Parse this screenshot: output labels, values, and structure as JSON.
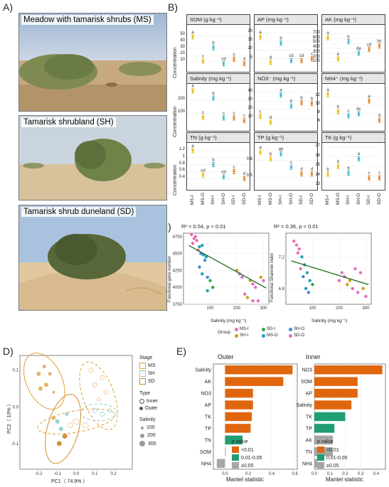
{
  "panels": {
    "a": "A)",
    "b": "B)",
    "c": "C)",
    "d": "D)",
    "e": "E)"
  },
  "photos": [
    {
      "caption": "Meadow with tamarisk shrubs (MS)"
    },
    {
      "caption": "Tamarisk shrubland (SH)"
    },
    {
      "caption": "Tamarisk shrub duneland (SD)"
    }
  ],
  "panel_b": {
    "ylabel": "Concentration",
    "groups": [
      "MS-I",
      "MS-O",
      "SH-I",
      "SH-O",
      "SD-I",
      "SD-O"
    ],
    "colors": [
      "#e7b800",
      "#e7b800",
      "#2ab7ca",
      "#2ab7ca",
      "#e07b1a",
      "#e07b1a"
    ]
  },
  "panel_c": {
    "left": {
      "r2": "R² = 0.54, p < 0.01",
      "ylabel": "Functional gene number",
      "xlabel": "Salinity (mg kg⁻¹)"
    },
    "right": {
      "r2": "R² = 0.36, p < 0.01",
      "ylabel": "Functional Shannon index",
      "xlabel": "Salinity (mg kg⁻¹)"
    },
    "legend_title": "Group",
    "legend": [
      {
        "label": "MS-I",
        "color": "#f06bb0"
      },
      {
        "label": "SH-I",
        "color": "#c9a11a"
      },
      {
        "label": "SD-I",
        "color": "#2aa84a"
      },
      {
        "label": "MS-O",
        "color": "#1aa3b8"
      },
      {
        "label": "SH-O",
        "color": "#3b8cd6"
      },
      {
        "label": "SD-O",
        "color": "#e36cc4"
      }
    ]
  },
  "panel_d": {
    "xlabel": "PC1（ 74.9% ）",
    "ylabel": "PC2（ 10% ）",
    "legend": {
      "stage_title": "Stage",
      "stages": [
        "MS",
        "SH",
        "SD"
      ],
      "type_title": "Type",
      "types": [
        "Inner",
        "Outer"
      ],
      "salinity_title": "Salinity",
      "salinity": [
        "100",
        "200",
        "300"
      ]
    }
  },
  "panel_e": {
    "outer": {
      "title": "Outer",
      "xlabel": "Mantel statistic"
    },
    "inner": {
      "title": "Inner",
      "xlabel": "Mantel statistic"
    },
    "legend_title": "p value",
    "legend": [
      {
        "label": "<0.01",
        "color": "#e0660e"
      },
      {
        "label": "0.01-0.05",
        "color": "#1f9e74"
      },
      {
        "label": "≥0.05",
        "color": "#a6a6a6"
      }
    ]
  },
  "chart_data": [
    {
      "type": "scatter",
      "panel": "B",
      "facets": [
        {
          "title": "SOM (g kg⁻¹)",
          "ylim": [
            0,
            60
          ],
          "ticks": [
            10,
            20,
            30,
            40,
            50
          ],
          "values": [
            48,
            10,
            31,
            6,
            13,
            6
          ],
          "letters": [
            "a",
            "c",
            "b",
            "cd",
            "c",
            "d"
          ]
        },
        {
          "title": "AP (mg kg⁻¹)",
          "ylim": [
            0,
            22
          ],
          "ticks": [
            5,
            10,
            15,
            20
          ],
          "values": [
            17.5,
            3,
            14,
            4,
            4,
            5
          ],
          "letters": [
            "a",
            "d",
            "b",
            "cd",
            "cd",
            "c"
          ]
        },
        {
          "title": "AK (mg kg⁻¹)",
          "ylim": [
            0,
            800
          ],
          "ticks": [
            100,
            200,
            300,
            400,
            500,
            600,
            700
          ],
          "values": [
            620,
            180,
            540,
            300,
            380,
            450
          ],
          "letters": [
            "a",
            "e",
            "b",
            "de",
            "cd",
            "bc"
          ]
        },
        {
          "title": "Salinity (mg kg⁻¹)",
          "ylim": [
            0,
            290
          ],
          "ticks": [
            100,
            200
          ],
          "values": [
            270,
            70,
            215,
            65,
            65,
            45
          ],
          "letters": [
            "a",
            "c",
            "b",
            "c",
            "c",
            "c"
          ]
        },
        {
          "title": "NO3⁻ (mg kg⁻¹)",
          "ylim": [
            0,
            45
          ],
          "ticks": [
            10,
            20,
            30,
            40
          ],
          "values": [
            12,
            5,
            37,
            24,
            28,
            27
          ],
          "letters": [
            "c",
            "d",
            "a",
            "b",
            "b",
            "b"
          ]
        },
        {
          "title": "NH4⁺ (mg kg⁻¹)",
          "ylim": [
            5,
            14
          ],
          "ticks": [
            6,
            8,
            10,
            12
          ],
          "values": [
            12.5,
            8.5,
            7.5,
            8,
            11,
            6.5
          ],
          "letters": [
            "a",
            "b",
            "c",
            "bc",
            "a",
            "d"
          ]
        },
        {
          "title": "TN (g kg⁻¹)",
          "ylim": [
            0.2,
            1.3
          ],
          "ticks": [
            0.4,
            0.6,
            0.8,
            1.0,
            1.2
          ],
          "values": [
            1.2,
            0.5,
            0.8,
            0.45,
            0.6,
            0.4
          ],
          "letters": [
            "a",
            "cd",
            "b",
            "cd",
            "c",
            "d"
          ]
        },
        {
          "title": "TP (g kg⁻¹)",
          "ylim": [
            0.45,
            0.68
          ],
          "ticks": [
            0.5,
            0.6
          ],
          "values": [
            0.65,
            0.61,
            0.64,
            0.56,
            0.52,
            0.52
          ],
          "letters": [
            "a",
            "b",
            "ab",
            "c",
            "d",
            "d"
          ]
        },
        {
          "title": "TK (g kg⁻¹)",
          "ylim": [
            13,
            17
          ],
          "ticks": [
            13,
            14,
            15,
            16,
            17
          ],
          "values": [
            14.2,
            15,
            14.3,
            15.8,
            13.8,
            13.8
          ],
          "letters": [
            "b",
            "b",
            "b",
            "a",
            "c",
            "c"
          ]
        }
      ]
    },
    {
      "type": "scatter",
      "panel": "C-left",
      "xlim": [
        0,
        320
      ],
      "xticks": [
        100,
        200,
        300
      ],
      "ylim": [
        3750,
        4800
      ],
      "yticks": [
        3750,
        4000,
        4250,
        4500,
        4750
      ],
      "points": [
        [
          30,
          4780
        ],
        [
          40,
          4720
        ],
        [
          35,
          4650
        ],
        [
          45,
          4750
        ],
        [
          50,
          4690
        ],
        [
          60,
          4600
        ],
        [
          55,
          4550
        ],
        [
          70,
          4620
        ],
        [
          65,
          4500
        ],
        [
          75,
          4480
        ],
        [
          80,
          4400
        ],
        [
          85,
          4450
        ],
        [
          60,
          4300
        ],
        [
          70,
          4200
        ],
        [
          90,
          4150
        ],
        [
          100,
          4100
        ],
        [
          110,
          4000
        ],
        [
          90,
          3950
        ],
        [
          200,
          4250
        ],
        [
          210,
          4200
        ],
        [
          220,
          4150
        ],
        [
          250,
          4100
        ],
        [
          260,
          4050
        ],
        [
          270,
          4000
        ],
        [
          290,
          4150
        ],
        [
          300,
          4100
        ],
        [
          230,
          3900
        ],
        [
          240,
          3850
        ],
        [
          260,
          3800
        ],
        [
          280,
          3800
        ]
      ],
      "fit": [
        [
          20,
          4620
        ],
        [
          310,
          3990
        ]
      ]
    },
    {
      "type": "scatter",
      "panel": "C-right",
      "xlim": [
        0,
        320
      ],
      "xticks": [
        100,
        200,
        300
      ],
      "ylim": [
        6.6,
        7.5
      ],
      "yticks": [
        6.8,
        7.2
      ],
      "points": [
        [
          30,
          7.4
        ],
        [
          40,
          7.35
        ],
        [
          50,
          7.3
        ],
        [
          60,
          7.2
        ],
        [
          45,
          7.25
        ],
        [
          70,
          7.1
        ],
        [
          55,
          7.05
        ],
        [
          80,
          7.0
        ],
        [
          65,
          6.95
        ],
        [
          90,
          6.9
        ],
        [
          100,
          6.85
        ],
        [
          75,
          6.8
        ],
        [
          85,
          6.75
        ],
        [
          210,
          7.0
        ],
        [
          220,
          6.95
        ],
        [
          240,
          6.9
        ],
        [
          260,
          7.05
        ],
        [
          280,
          7.0
        ],
        [
          230,
          6.85
        ],
        [
          250,
          6.8
        ],
        [
          270,
          6.75
        ],
        [
          290,
          6.8
        ],
        [
          300,
          6.7
        ],
        [
          200,
          6.9
        ]
      ],
      "fit": [
        [
          20,
          7.15
        ],
        [
          310,
          6.85
        ]
      ]
    },
    {
      "type": "scatter",
      "panel": "D",
      "xlabel": "PC1（ 74.9% ）",
      "ylabel": "PC2（ 10% ）",
      "xlim": [
        -0.3,
        0.3
      ],
      "xticks": [
        -0.2,
        -0.1,
        0.0,
        0.1,
        0.2
      ],
      "ylim": [
        -0.17,
        0.14
      ],
      "yticks": [
        -0.1,
        0.0,
        0.1
      ]
    },
    {
      "type": "bar",
      "panel": "E-outer",
      "categories": [
        "Salinity",
        "AK",
        "NO3",
        "AP",
        "TK",
        "TP",
        "TN",
        "SOM",
        "NH4"
      ],
      "values": [
        0.58,
        0.5,
        0.24,
        0.24,
        0.23,
        0.22,
        0.15,
        0.0,
        -0.07
      ],
      "significance": [
        "<0.01",
        "<0.01",
        "<0.01",
        "<0.01",
        "<0.01",
        "<0.01",
        "0.01-0.05",
        "≥0.05",
        "≥0.05"
      ],
      "xlim": [
        -0.1,
        0.62
      ],
      "xticks": [
        0.0,
        0.2,
        0.4,
        0.6
      ]
    },
    {
      "type": "bar",
      "panel": "E-inner",
      "categories": [
        "NO3",
        "SOM",
        "AP",
        "Salinity",
        "TK",
        "TP",
        "AK",
        "TN",
        "NH4"
      ],
      "values": [
        0.44,
        0.28,
        0.28,
        0.24,
        0.2,
        0.13,
        0.12,
        0.12,
        0.02
      ],
      "significance": [
        "<0.01",
        "<0.01",
        "<0.01",
        "<0.01",
        "0.01-0.05",
        "0.01-0.05",
        "≥0.05",
        "≥0.05",
        "≥0.05"
      ],
      "xlim": [
        0,
        0.46
      ],
      "xticks": [
        0.0,
        0.1,
        0.2,
        0.3,
        0.4
      ]
    }
  ]
}
